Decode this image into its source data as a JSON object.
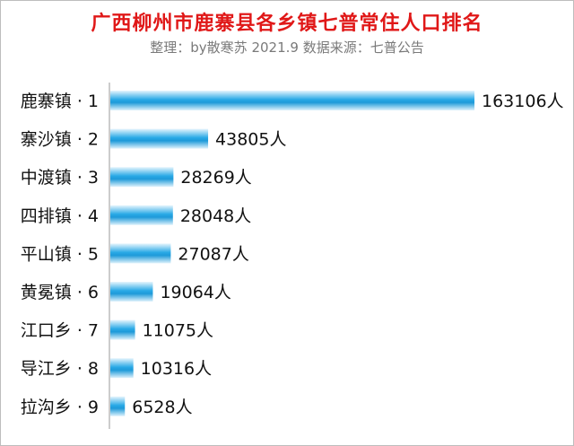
{
  "chart_data": {
    "type": "bar",
    "orientation": "horizontal",
    "title": "广西柳州市鹿寨县各乡镇七普常住人口排名",
    "subtitle": "整理：by散寒苏 2021.9 数据来源：七普公告",
    "categories": [
      "鹿寨镇 · 1",
      "寨沙镇 · 2",
      "中渡镇 · 3",
      "四排镇 · 4",
      "平山镇 · 5",
      "黄冕镇 · 6",
      "江口乡 · 7",
      "导江乡 · 8",
      "拉沟乡 · 9"
    ],
    "values": [
      163106,
      43805,
      28269,
      28048,
      27087,
      19064,
      11075,
      10316,
      6528
    ],
    "value_labels": [
      "163106人",
      "43805人",
      "28269人",
      "28048人",
      "27087人",
      "19064人",
      "11075人",
      "10316人",
      "6528人"
    ],
    "xlim": [
      0,
      163106
    ],
    "grid": false,
    "legend": "none",
    "bar_color": "#29a9e6",
    "title_color": "#e01818"
  }
}
